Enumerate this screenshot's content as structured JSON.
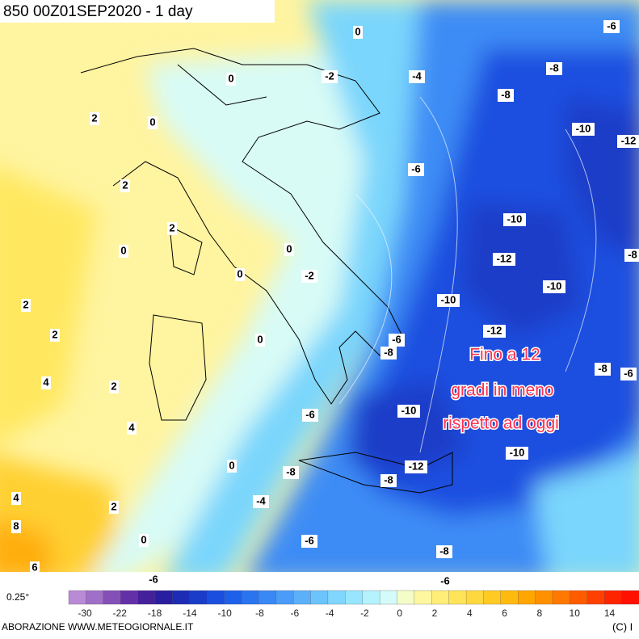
{
  "header": {
    "title": "850 00Z01SEP2020 - 1 day"
  },
  "contour_labels": [
    "0",
    "-6",
    "-8",
    "-2",
    "-4",
    "0",
    "-8",
    "2",
    "0",
    "-10",
    "-12",
    "-6",
    "2",
    "2",
    "-10",
    "0",
    "0",
    "-12",
    "0",
    "-2",
    "-10",
    "2",
    "-10",
    "-8",
    "2",
    "0",
    "-12",
    "-6",
    "-8",
    "4",
    "2",
    "-8",
    "-6",
    "4",
    "-6",
    "-10",
    "-10",
    "0",
    "-8",
    "-12",
    "-8",
    "4",
    "-4",
    "2",
    "8",
    "0",
    "-6",
    "-8",
    "6",
    "-6",
    "-6"
  ],
  "annotation": [
    "Fino a 12",
    "gradi in meno",
    "rispetto ad oggi"
  ],
  "colorbar": {
    "resolution": "0.25°",
    "tick_labels": [
      "-30",
      "-22",
      "-18",
      "-14",
      "-10",
      "-8",
      "-6",
      "-4",
      "-2",
      "0",
      "2",
      "4",
      "6",
      "8",
      "10",
      "14"
    ],
    "colors": [
      "#b98ad6",
      "#a070c8",
      "#8450b8",
      "#6430a8",
      "#44209a",
      "#2a1ea0",
      "#1c2cb4",
      "#1a3cc8",
      "#1c4ede",
      "#1f60ea",
      "#2a74f0",
      "#3a88f5",
      "#4a9cf8",
      "#5cb0fa",
      "#6cc4fc",
      "#80d6fd",
      "#98e6fe",
      "#b4f2fe",
      "#d4fbfa",
      "#f4fcc8",
      "#fff6a0",
      "#ffee78",
      "#ffe45a",
      "#ffd840",
      "#ffca24",
      "#ffba10",
      "#ffa600",
      "#ff9000",
      "#ff7800",
      "#ff5c00",
      "#ff4000",
      "#ff2400",
      "#ff1000"
    ]
  },
  "footer": {
    "left": "ABORAZIONE WWW.METEOGIORNALE.IT",
    "right": "(C) I"
  }
}
